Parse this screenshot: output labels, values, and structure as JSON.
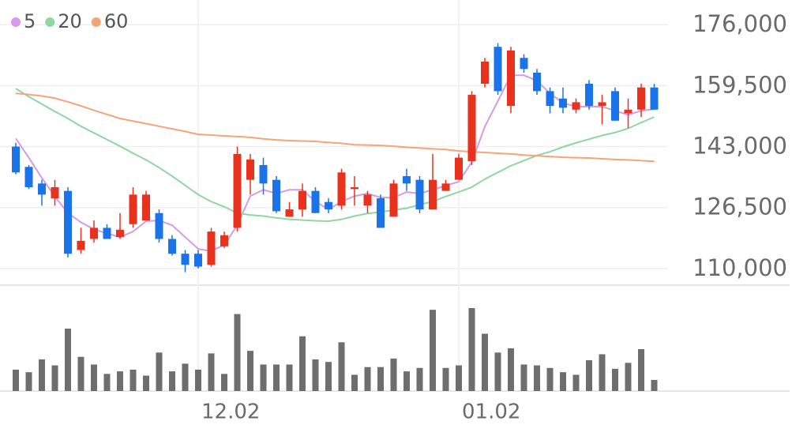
{
  "chart_data": {
    "type": "candlestick",
    "categories": [
      null,
      null,
      null,
      null,
      null,
      null,
      null,
      null,
      null,
      null,
      null,
      null,
      null,
      null,
      "12.02",
      null,
      null,
      null,
      null,
      null,
      null,
      null,
      null,
      null,
      null,
      null,
      null,
      null,
      null,
      null,
      null,
      null,
      null,
      null,
      "01.02",
      null,
      null,
      null,
      null,
      null,
      null,
      null,
      null,
      null,
      null,
      null,
      null,
      null,
      null,
      null
    ],
    "open": [
      143000,
      137500,
      133000,
      129000,
      131000,
      115000,
      118000,
      121000,
      118500,
      122000,
      123000,
      125000,
      118000,
      114000,
      114000,
      111000,
      116000,
      121000,
      134000,
      138000,
      134000,
      124000,
      126000,
      131000,
      128000,
      127000,
      131500,
      127000,
      129000,
      124000,
      135000,
      134000,
      126000,
      131000,
      134000,
      139000,
      160000,
      170000,
      154000,
      167000,
      163000,
      158000,
      156000,
      153000,
      160000,
      154000,
      158000,
      152000,
      153000,
      159000
    ],
    "high": [
      144000,
      138000,
      134000,
      134000,
      132000,
      121000,
      123000,
      122000,
      125000,
      132000,
      131000,
      126000,
      119000,
      115000,
      115000,
      121000,
      120000,
      143000,
      141000,
      140000,
      135000,
      128000,
      133000,
      132000,
      129000,
      137000,
      135000,
      131000,
      130000,
      134000,
      137000,
      135000,
      141000,
      134000,
      141000,
      158000,
      167000,
      171000,
      170000,
      168000,
      164000,
      159000,
      159000,
      156000,
      161000,
      157000,
      159000,
      156000,
      160000,
      160000
    ],
    "low": [
      135500,
      131500,
      127000,
      127000,
      113000,
      114000,
      117000,
      118000,
      118000,
      121000,
      123000,
      117000,
      113500,
      109000,
      110000,
      110500,
      115500,
      120000,
      130000,
      130000,
      125000,
      124000,
      124000,
      125000,
      125000,
      126000,
      127000,
      125000,
      121000,
      124000,
      131000,
      125000,
      126000,
      131000,
      134000,
      138000,
      159000,
      157000,
      152000,
      163000,
      157000,
      152000,
      152000,
      152000,
      153000,
      149000,
      150000,
      148000,
      151000,
      153000
    ],
    "close": [
      136000,
      132000,
      130000,
      132000,
      114000,
      117500,
      121000,
      118000,
      120500,
      130000,
      130000,
      118000,
      114000,
      111000,
      110500,
      120000,
      119000,
      141000,
      139500,
      133000,
      125500,
      126000,
      131000,
      125000,
      126000,
      136000,
      132000,
      130000,
      121000,
      133000,
      133000,
      126000,
      134000,
      133000,
      140000,
      157000,
      166000,
      158000,
      169000,
      164000,
      158000,
      154000,
      153500,
      155000,
      154000,
      155000,
      150000,
      153000,
      159000,
      153000
    ],
    "up_color": "#e8321e",
    "down_color": "#1a73e8",
    "volume": [
      25,
      22,
      37,
      30,
      73,
      40,
      31,
      20,
      23,
      25,
      18,
      45,
      23,
      32,
      25,
      44,
      20,
      90,
      47,
      31,
      31,
      31,
      64,
      37,
      34,
      57,
      19,
      28,
      28,
      38,
      23,
      27,
      95,
      27,
      30,
      97,
      67,
      45,
      50,
      31,
      30,
      27,
      22,
      19,
      36,
      43,
      26,
      33,
      49,
      13
    ],
    "volume_color": "#6e6e6e",
    "series": [
      {
        "name": "5",
        "color": "#d49be6",
        "values": [
          145200,
          140000,
          134500,
          129500,
          125000,
          122500,
          120600,
          119500,
          118500,
          120000,
          122800,
          123000,
          121700,
          118500,
          115300,
          114700,
          116400,
          121700,
          129600,
          131300,
          130300,
          131300,
          131300,
          128100,
          126000,
          128100,
          129600,
          130300,
          129200,
          129200,
          130700,
          130300,
          131300,
          132400,
          133500,
          138800,
          148400,
          155300,
          162300,
          162300,
          160800,
          157400,
          154800,
          153800,
          153800,
          153800,
          152700,
          151600,
          152700,
          153100
        ]
      },
      {
        "name": "20",
        "color": "#8fd6a0",
        "values": [
          158700,
          156500,
          154500,
          152500,
          150600,
          148500,
          146700,
          144900,
          143100,
          141200,
          139400,
          137300,
          135000,
          132500,
          130000,
          128100,
          126700,
          125000,
          124500,
          124200,
          123700,
          123300,
          123100,
          122900,
          122800,
          123300,
          124200,
          124900,
          125300,
          125800,
          126300,
          127300,
          128100,
          129500,
          130700,
          132000,
          134200,
          136000,
          137800,
          139200,
          140600,
          141600,
          142900,
          144000,
          145000,
          146000,
          146800,
          147900,
          149500,
          151000
        ]
      },
      {
        "name": "60",
        "color": "#f4a47a",
        "values": [
          157400,
          157100,
          156700,
          156100,
          155100,
          154000,
          152800,
          151700,
          150600,
          149900,
          149200,
          148500,
          147800,
          147100,
          146300,
          146100,
          145900,
          145700,
          145500,
          145100,
          144800,
          144600,
          144500,
          144400,
          144100,
          143900,
          143500,
          143400,
          143300,
          143100,
          142800,
          142600,
          142400,
          142200,
          141800,
          141600,
          141400,
          141200,
          141000,
          140700,
          140500,
          140300,
          140100,
          140000,
          139900,
          139700,
          139500,
          139400,
          139200,
          139000
        ]
      }
    ],
    "ylim": [
      105700,
      181600
    ],
    "yticks": [
      {
        "value": 110000,
        "label": "110,000"
      },
      {
        "value": 126500,
        "label": "126,500"
      },
      {
        "value": 143000,
        "label": "143,000"
      },
      {
        "value": 159500,
        "label": "159,500"
      },
      {
        "value": 176000,
        "label": "176,000"
      }
    ],
    "grid": true
  }
}
